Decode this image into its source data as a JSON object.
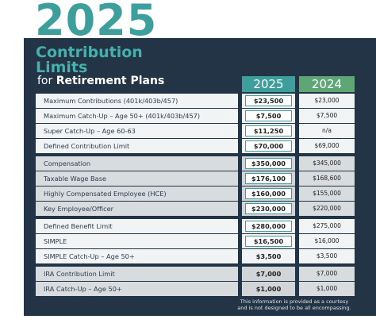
{
  "header": {
    "year": "2025",
    "title_line1": "Contribution",
    "title_line2": "Limits",
    "subtitle_prefix": "for",
    "subtitle": "Retirement Plans"
  },
  "table": {
    "columns": [
      "2025",
      "2024"
    ],
    "groups": [
      [
        {
          "label": "Maximum Contributions (401k/403b/457)",
          "v2025": "$23,500",
          "v2024": "$23,000",
          "boxed": true
        },
        {
          "label": "Maximum Catch-Up – Age 50+ (401k/403b/457)",
          "v2025": "$7,500",
          "v2024": "$7,500",
          "boxed": true
        },
        {
          "label": "Super Catch-Up – Age 60-63",
          "v2025": "$11,250",
          "v2024": "n/a",
          "boxed": true
        },
        {
          "label": "Defined Contribution Limit",
          "v2025": "$70,000",
          "v2024": "$69,000",
          "boxed": true
        }
      ],
      [
        {
          "label": "Compensation",
          "v2025": "$350,000",
          "v2024": "$345,000",
          "boxed": true
        },
        {
          "label": "Taxable Wage Base",
          "v2025": "$176,100",
          "v2024": "$168,600",
          "boxed": true
        },
        {
          "label": "Highly Compensated Employee (HCE)",
          "v2025": "$160,000",
          "v2024": "$155,000",
          "boxed": true
        },
        {
          "label": "Key Employee/Officer",
          "v2025": "$230,000",
          "v2024": "$220,000",
          "boxed": true
        }
      ],
      [
        {
          "label": "Defined Benefit Limit",
          "v2025": "$280,000",
          "v2024": "$275,000",
          "boxed": true
        },
        {
          "label": "SIMPLE",
          "v2025": "$16,500",
          "v2024": "$16,000",
          "boxed": true
        },
        {
          "label": "SIMPLE Catch-Up – Age 50+",
          "v2025": "$3,500",
          "v2024": "$3,500",
          "boxed": false
        }
      ],
      [
        {
          "label": "IRA Contribution Limit",
          "v2025": "$7,000",
          "v2024": "$7,000",
          "boxed": false
        },
        {
          "label": "IRA Catch-Up – Age 50+",
          "v2025": "$1,000",
          "v2024": "$1,000",
          "boxed": false
        }
      ]
    ]
  },
  "footnote": [
    "This information is provided as a courtesy",
    "and is not designed to be all encompassing."
  ]
}
